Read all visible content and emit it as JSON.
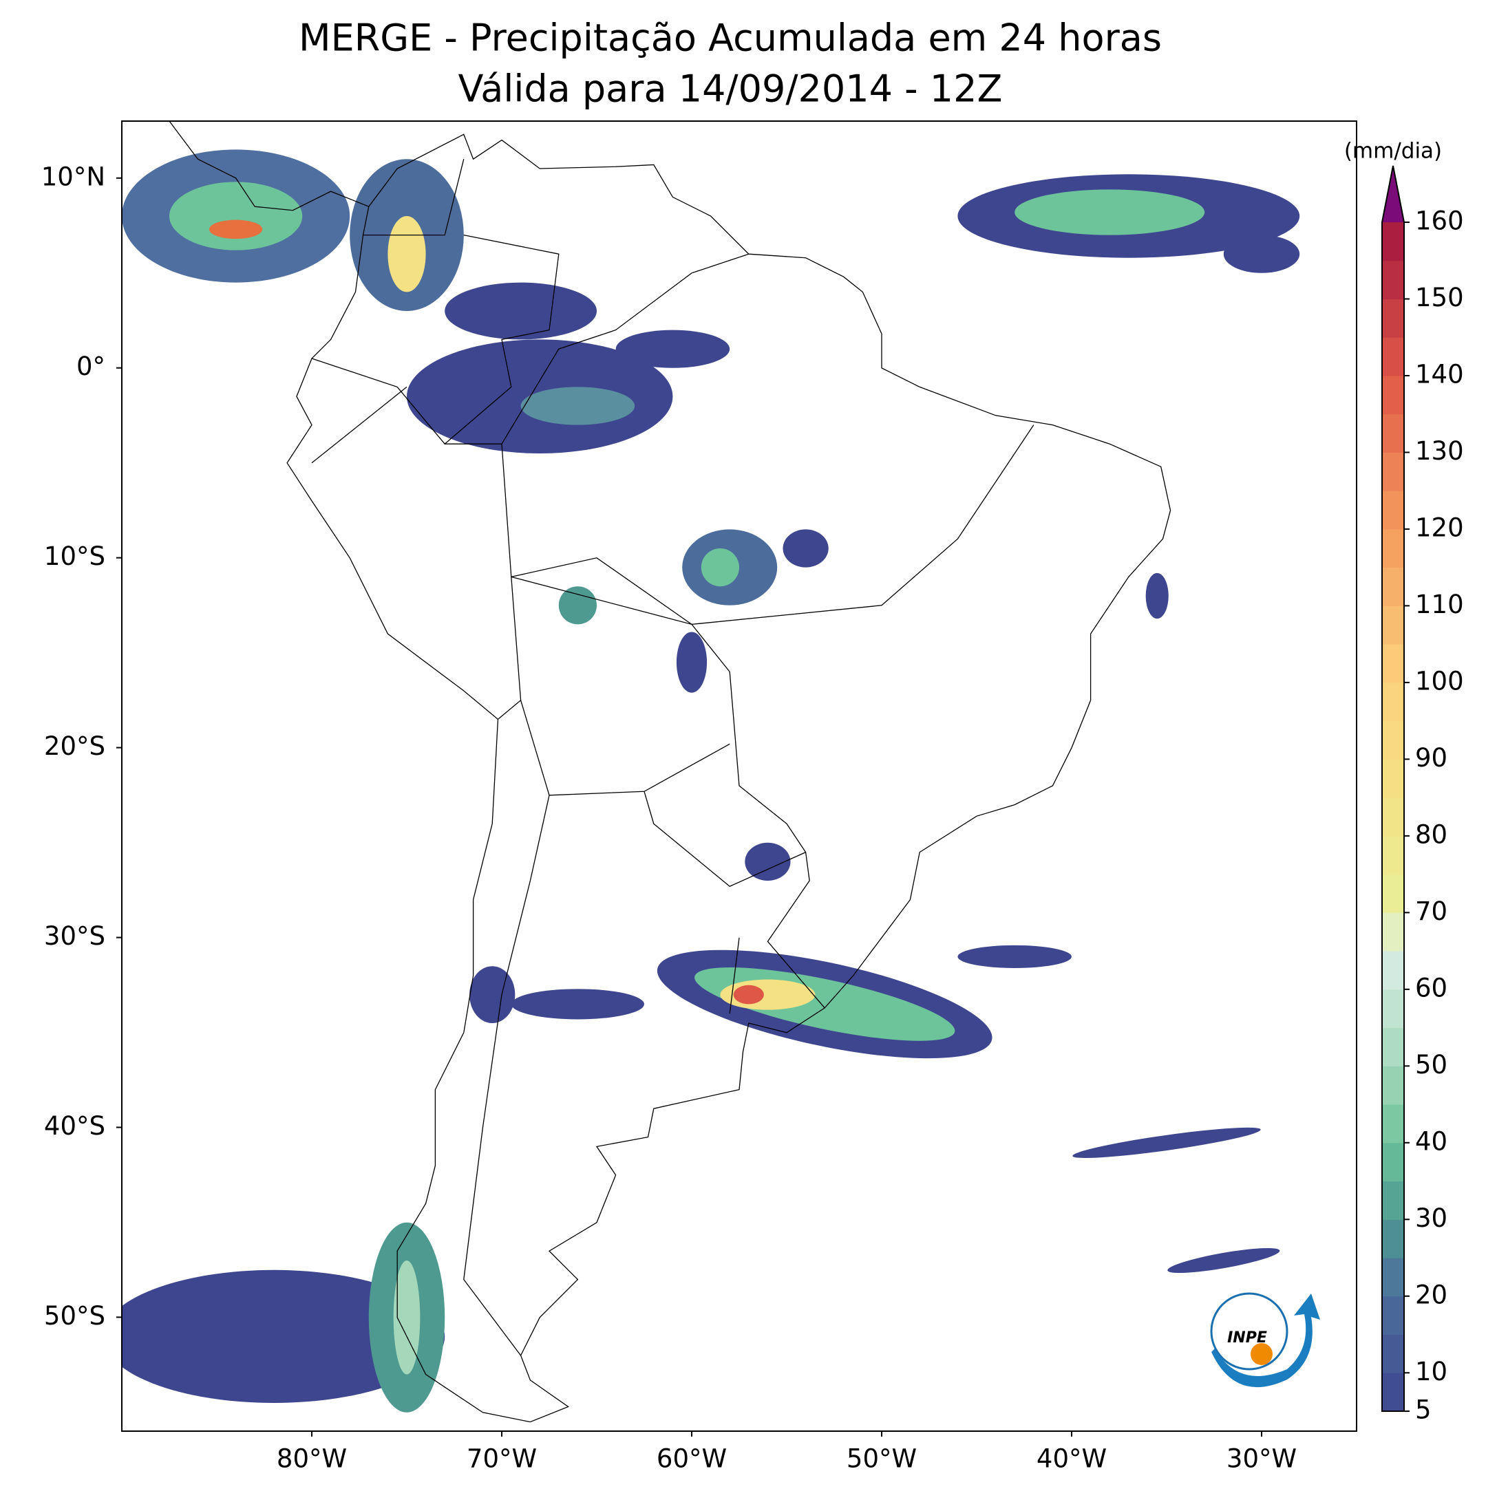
{
  "map": {
    "title": "MERGE - Precipitação Acumulada em 24 horas",
    "subtitle": "Válida para 14/09/2014 - 12Z",
    "lonlim": [
      -90,
      -25
    ],
    "latlim": [
      -56,
      13
    ],
    "lon_ticks": [
      {
        "value": -80,
        "label": "80°W"
      },
      {
        "value": -70,
        "label": "70°W"
      },
      {
        "value": -60,
        "label": "60°W"
      },
      {
        "value": -50,
        "label": "50°W"
      },
      {
        "value": -40,
        "label": "40°W"
      },
      {
        "value": -30,
        "label": "30°W"
      }
    ],
    "lat_ticks": [
      {
        "value": 10,
        "label": "10°N"
      },
      {
        "value": 0,
        "label": "0°"
      },
      {
        "value": -10,
        "label": "10°S"
      },
      {
        "value": -20,
        "label": "20°S"
      },
      {
        "value": -30,
        "label": "30°S"
      },
      {
        "value": -40,
        "label": "40°S"
      },
      {
        "value": -50,
        "label": "50°S"
      }
    ],
    "logo_text": "INPE",
    "colorbar": {
      "unit": "(mm/dia)",
      "lim": [
        5,
        160
      ],
      "step": 5,
      "extend_color": "#7a0b78",
      "color_stops": [
        {
          "value": 5,
          "color": "#3f4690"
        },
        {
          "value": 20,
          "color": "#4c6d9c"
        },
        {
          "value": 30,
          "color": "#4e9a90"
        },
        {
          "value": 40,
          "color": "#6dc39a"
        },
        {
          "value": 50,
          "color": "#a5d8bb"
        },
        {
          "value": 65,
          "color": "#dcede8"
        },
        {
          "value": 70,
          "color": "#e9ef9a"
        },
        {
          "value": 85,
          "color": "#f3e183"
        },
        {
          "value": 100,
          "color": "#fcd27d"
        },
        {
          "value": 120,
          "color": "#f49b5d"
        },
        {
          "value": 140,
          "color": "#df5747"
        },
        {
          "value": 160,
          "color": "#a2173f"
        }
      ],
      "ticks": [
        5,
        10,
        20,
        30,
        40,
        50,
        60,
        70,
        80,
        90,
        100,
        110,
        120,
        130,
        140,
        150,
        160
      ]
    }
  }
}
